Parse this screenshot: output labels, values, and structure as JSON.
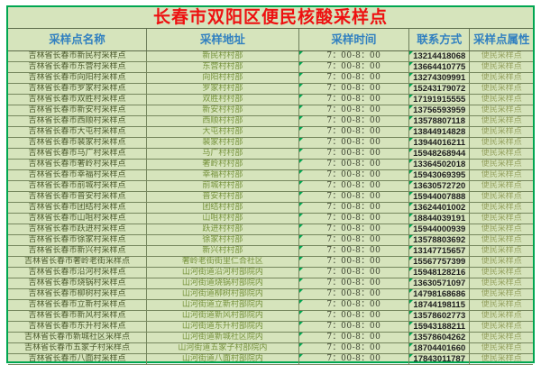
{
  "title": "长春市双阳区便民核酸采样点",
  "columns": [
    "采样点名称",
    "采样地址",
    "采样时间",
    "联系方式",
    "采样点属性"
  ],
  "colors": {
    "row_bg": "#d6e4bc",
    "title_text": "#ee1010",
    "header_text": "#3180c0",
    "outer_border_green": "#00a651",
    "flag_green": "#00a651"
  },
  "icons": {
    "cell_flag": "green-corner-triangle"
  },
  "rows": [
    {
      "name": "吉林省长春市新民村采样点",
      "address": "新民村村部",
      "time": "7：00-8：00",
      "phone": "13214418068",
      "attribute": "便民采样点"
    },
    {
      "name": "吉林省长春市东营村采样点",
      "address": "东营村村部",
      "time": "7：00-8：00",
      "phone": "13664410775",
      "attribute": "便民采样点"
    },
    {
      "name": "吉林省长春市向阳村采样点",
      "address": "向阳村村部",
      "time": "7：00-8：00",
      "phone": "13274309991",
      "attribute": "便民采样点"
    },
    {
      "name": "吉林省长春市罗家村采样点",
      "address": "罗家村村部",
      "time": "7：00-8：00",
      "phone": "15243179072",
      "attribute": "便民采样点"
    },
    {
      "name": "吉林省长春市双胜村采样点",
      "address": "双胜村村部",
      "time": "7：00-8：00",
      "phone": "17191915555",
      "attribute": "便民采样点"
    },
    {
      "name": "吉林省长春市新安村采样点",
      "address": "新安村村部",
      "time": "7：00-8：00",
      "phone": "13756593959",
      "attribute": "便民采样点"
    },
    {
      "name": "吉林省长春市西顺村采样点",
      "address": "西顺村村部",
      "time": "7：00-8：00",
      "phone": "13578807118",
      "attribute": "便民采样点"
    },
    {
      "name": "吉林省长春市大屯村采样点",
      "address": "大屯村村部",
      "time": "7：00-8：00",
      "phone": "13844914828",
      "attribute": "便民采样点"
    },
    {
      "name": "吉林省长春市裴家村采样点",
      "address": "裴家村村部",
      "time": "7：00-8：00",
      "phone": "13944016211",
      "attribute": "便民采样点"
    },
    {
      "name": "吉林省长春市马广村采样点",
      "address": "马广村村部",
      "time": "7：00-8：00",
      "phone": "15948268944",
      "attribute": "便民采样点"
    },
    {
      "name": "吉林省长春市奢岭村采样点",
      "address": "奢岭村村部",
      "time": "7：00-8：00",
      "phone": "13364502018",
      "attribute": "便民采样点"
    },
    {
      "name": "吉林省长春市幸福村采样点",
      "address": "幸福村村部",
      "time": "7：00-8：00",
      "phone": "15943069395",
      "attribute": "便民采样点"
    },
    {
      "name": "吉林省长春市前城村采样点",
      "address": "前城村村部",
      "time": "7：00-8：00",
      "phone": "13630572720",
      "attribute": "便民采样点"
    },
    {
      "name": "吉林省长春市普安村采样点",
      "address": "普安村村部",
      "time": "7：00-8：00",
      "phone": "15944007888",
      "attribute": "便民采样点"
    },
    {
      "name": "吉林省长春市团结村采样点",
      "address": "团结村村部",
      "time": "7：00-8：00",
      "phone": "13624401002",
      "attribute": "便民采样点"
    },
    {
      "name": "吉林省长春市山咀村采样点",
      "address": "山咀村村部",
      "time": "7：00-8：00",
      "phone": "18844039191",
      "attribute": "便民采样点"
    },
    {
      "name": "吉林省长春市跃进村采样点",
      "address": "跃进村村部",
      "time": "7：00-8：00",
      "phone": "15944000939",
      "attribute": "便民采样点"
    },
    {
      "name": "吉林省长春市徐家村采样点",
      "address": "徐家村村部",
      "time": "7：00-8：00",
      "phone": "13578803692",
      "attribute": "便民采样点"
    },
    {
      "name": "吉林省长春市新兴村采样点",
      "address": "新兴村村部",
      "time": "7：00-8：00",
      "phone": "13147715657",
      "attribute": "便民采样点"
    },
    {
      "name": "吉林省长春市奢岭老街采样点",
      "address": "奢岭老街街里仁合社区",
      "time": "7：00-8：00",
      "phone": "15567757399",
      "attribute": "便民采样点"
    },
    {
      "name": "吉林省长春市沿河村采样点",
      "address": "山河街道沿河村部院内",
      "time": "7：00-8：00",
      "phone": "15948128216",
      "attribute": "便民采样点"
    },
    {
      "name": "吉林省长春市烧锅村采样点",
      "address": "山河街道烧锅村部院内",
      "time": "7：00-8：00",
      "phone": "13630571097",
      "attribute": "便民采样点"
    },
    {
      "name": "吉林省长春市柳树村采样点",
      "address": "山河街道柳树村部院内",
      "time": "7：00-8：00",
      "phone": "14798168686",
      "attribute": "便民采样点"
    },
    {
      "name": "吉林省长春市立新村采样点",
      "address": "山河街道立新村部院内",
      "time": "7：00-8：00",
      "phone": "18744198115",
      "attribute": "便民采样点"
    },
    {
      "name": "吉林省长春市新风村采样点",
      "address": "山河街道新风村部院内",
      "time": "7：00-8：00",
      "phone": "13578602773",
      "attribute": "便民采样点"
    },
    {
      "name": "吉林省长春市东升村采样点",
      "address": "山河街道东升村部院内",
      "time": "7：00-8：00",
      "phone": "15943188211",
      "attribute": "便民采样点"
    },
    {
      "name": "吉林省长春市新城社区采样点",
      "address": "山河街道新城社区院内",
      "time": "7：00-8：00",
      "phone": "13578604262",
      "attribute": "便民采样点"
    },
    {
      "name": "吉林省长春市五家子村采样点",
      "address": "山河街道五家子村部院内",
      "time": "7：00-8：00",
      "phone": "18704401660",
      "attribute": "便民采样点"
    },
    {
      "name": "吉林省长春市八面村采样点",
      "address": "山河街道八面村部院内",
      "time": "7：00-8：00",
      "phone": "17843011787",
      "attribute": "便民采样点"
    }
  ]
}
